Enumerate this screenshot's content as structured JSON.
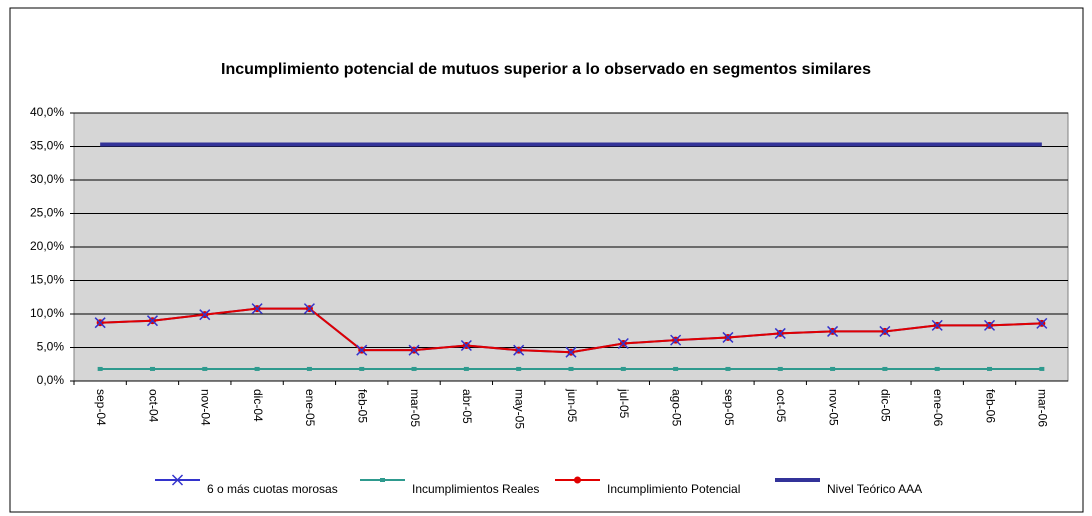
{
  "chart_data": {
    "type": "line",
    "title": "Incumplimiento potencial de mutuos superior a lo observado en segmentos similares",
    "categories": [
      "sep-04",
      "oct-04",
      "nov-04",
      "dic-04",
      "ene-05",
      "feb-05",
      "mar-05",
      "abr-05",
      "may-05",
      "jun-05",
      "jul-05",
      "ago-05",
      "sep-05",
      "oct-05",
      "nov-05",
      "dic-05",
      "ene-06",
      "feb-06",
      "mar-06"
    ],
    "series": [
      {
        "name": "6 o más cuotas morosas",
        "color": "#3333cc",
        "marker": "x",
        "line_width": 2,
        "values": [
          8.7,
          9.0,
          9.9,
          10.8,
          10.8,
          4.6,
          4.6,
          5.3,
          4.6,
          4.3,
          5.6,
          6.1,
          6.5,
          7.1,
          7.4,
          7.4,
          8.3,
          8.3,
          8.6
        ]
      },
      {
        "name": "Incumplimientos Reales",
        "color": "#2e9a8e",
        "marker": "square",
        "line_width": 2,
        "values": [
          1.8,
          1.8,
          1.8,
          1.8,
          1.8,
          1.8,
          1.8,
          1.8,
          1.8,
          1.8,
          1.8,
          1.8,
          1.8,
          1.8,
          1.8,
          1.8,
          1.8,
          1.8,
          1.8
        ]
      },
      {
        "name": "Incumplimiento Potencial",
        "color": "#e00000",
        "marker": "circle",
        "line_width": 2,
        "values": [
          8.7,
          9.0,
          9.9,
          10.8,
          10.8,
          4.6,
          4.6,
          5.3,
          4.6,
          4.3,
          5.6,
          6.1,
          6.5,
          7.1,
          7.4,
          7.4,
          8.3,
          8.3,
          8.6
        ]
      },
      {
        "name": "Nivel Teórico AAA",
        "color": "#333399",
        "marker": "none",
        "line_width": 4,
        "values": [
          35.3,
          35.3,
          35.3,
          35.3,
          35.3,
          35.3,
          35.3,
          35.3,
          35.3,
          35.3,
          35.3,
          35.3,
          35.3,
          35.3,
          35.3,
          35.3,
          35.3,
          35.3,
          35.3
        ]
      }
    ],
    "ylim": [
      0,
      40
    ],
    "yticks": [
      {
        "value": 0,
        "label": "0,0%"
      },
      {
        "value": 5,
        "label": "5,0%"
      },
      {
        "value": 10,
        "label": "10,0%"
      },
      {
        "value": 15,
        "label": "15,0%"
      },
      {
        "value": 20,
        "label": "20,0%"
      },
      {
        "value": 25,
        "label": "25,0%"
      },
      {
        "value": 30,
        "label": "30,0%"
      },
      {
        "value": 35,
        "label": "35,0%"
      },
      {
        "value": 40,
        "label": "40,0%"
      }
    ],
    "grid": true,
    "legend": "bottom",
    "plot_background": "#d6d6d6"
  }
}
